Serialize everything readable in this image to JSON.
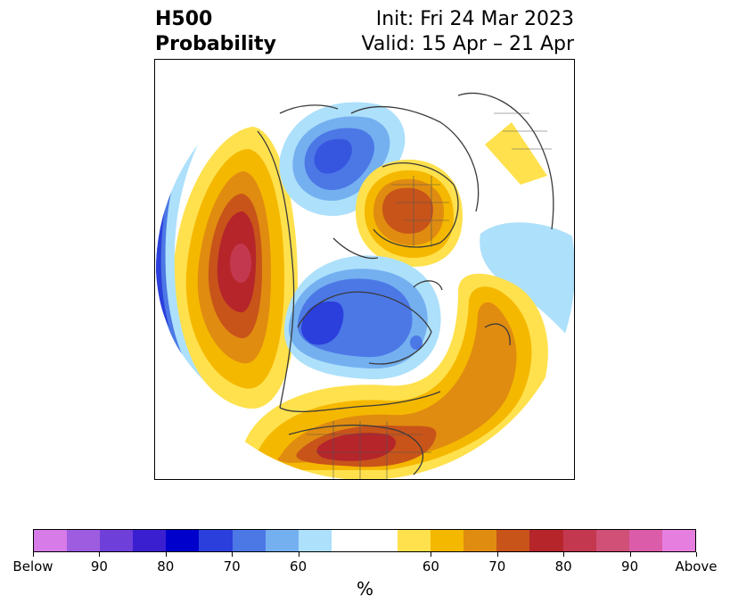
{
  "header": {
    "title_line1": "H500",
    "title_line2": "Probability",
    "init_text": "Init: Fri 24 Mar 2023",
    "valid_text": "Valid: 15 Apr – 21 Apr"
  },
  "colorbar": {
    "label": "%",
    "colors": [
      "#d77be8",
      "#9e5ce0",
      "#6f3fd9",
      "#3a1fd1",
      "#0000cd",
      "#2a3fdc",
      "#4c78e6",
      "#74b0f0",
      "#ade0fb",
      "#ffffff",
      "#ffffff",
      "#ffe14d",
      "#f5b800",
      "#e08c10",
      "#c8541a",
      "#b5252a",
      "#c4384f",
      "#d05077",
      "#db5da9",
      "#e67ee0"
    ],
    "tick_labels": [
      "Below",
      "90",
      "80",
      "70",
      "60",
      "60",
      "70",
      "80",
      "90",
      "Above"
    ]
  },
  "colors": {
    "land_outline": "#3a3a3a",
    "below_light": "#ade0fb",
    "above_dark": "#b5252a"
  }
}
